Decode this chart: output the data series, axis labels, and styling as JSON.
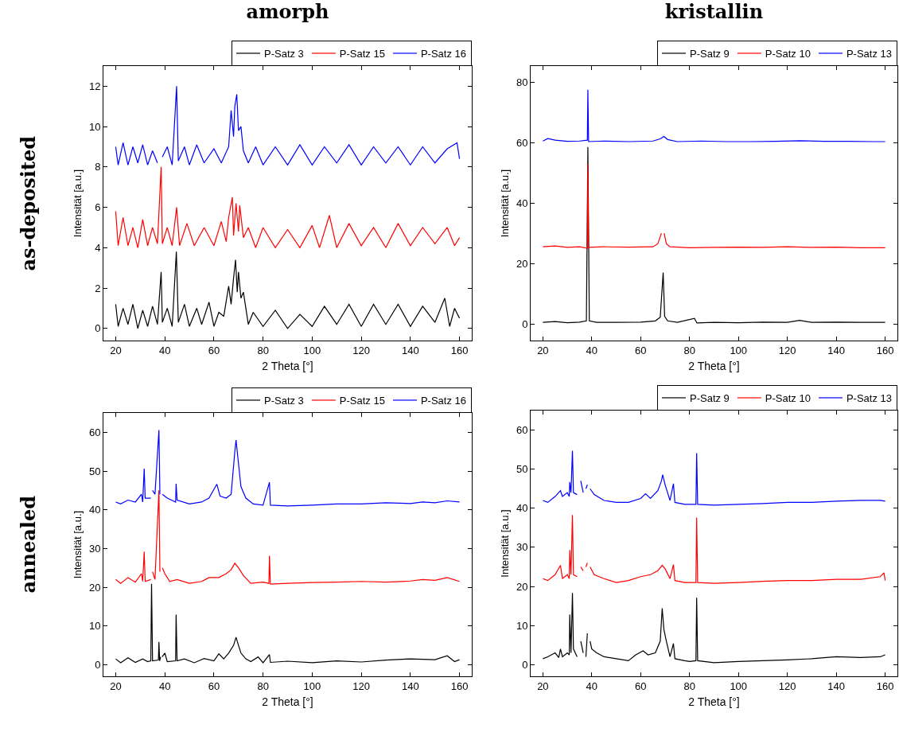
{
  "chart_data": [
    {
      "type": "line",
      "title": "amorph",
      "ylabel": "Intensität [a.u.]",
      "xlabel": "2 Theta [°]",
      "annotations": [
        "as-deposited"
      ],
      "xlim": [
        15,
        165
      ],
      "xticks": [
        20,
        40,
        60,
        80,
        100,
        120,
        140,
        160
      ],
      "ylim": [
        -0.6,
        13
      ],
      "yticks": [
        0,
        2,
        4,
        6,
        8,
        10,
        12
      ],
      "grid": false,
      "legend": "top right",
      "series": [
        {
          "name": "P-Satz 3",
          "color": "#000000",
          "x": [
            20,
            21,
            23,
            25,
            27,
            29,
            31,
            33,
            35,
            37,
            38.5,
            39,
            41,
            43,
            44.7,
            45.5,
            48,
            50,
            53,
            55,
            58,
            60,
            62,
            64,
            66,
            67,
            68,
            68.8,
            69.5,
            70,
            71,
            72,
            74,
            76,
            80,
            85,
            90,
            95,
            100,
            105,
            110,
            115,
            120,
            125,
            130,
            135,
            140,
            145,
            150,
            154,
            156,
            158,
            160
          ],
          "values": [
            1.2,
            0.1,
            1.0,
            0.2,
            1.2,
            0.0,
            0.9,
            0.1,
            1.1,
            0.2,
            2.8,
            0.3,
            1.0,
            0.1,
            3.8,
            0.3,
            1.2,
            0.1,
            1.0,
            0.2,
            1.3,
            0.1,
            0.8,
            0.6,
            2.1,
            1.2,
            2.5,
            3.4,
            1.8,
            2.8,
            1.5,
            1.8,
            0.2,
            0.8,
            0.1,
            0.9,
            0.0,
            0.7,
            0.1,
            1.1,
            0.2,
            1.2,
            0.1,
            1.2,
            0.2,
            1.2,
            0.1,
            1.1,
            0.3,
            1.5,
            0.1,
            1.0,
            0.5
          ]
        },
        {
          "name": "P-Satz 15",
          "color": "#ff0000",
          "x": [
            20,
            21,
            23,
            25,
            27,
            29,
            31,
            33,
            35,
            37,
            38.5,
            39,
            41,
            43,
            44.8,
            46,
            49,
            52,
            56,
            60,
            63,
            65,
            66,
            67.5,
            68,
            69,
            70,
            70.5,
            72,
            74,
            77,
            80,
            85,
            90,
            95,
            100,
            103,
            107,
            110,
            115,
            120,
            125,
            130,
            135,
            140,
            145,
            150,
            155,
            158,
            160
          ],
          "values": [
            5.8,
            4.1,
            5.5,
            4.1,
            5.0,
            4.0,
            5.4,
            4.1,
            5.0,
            4.2,
            8.0,
            4.2,
            5.0,
            4.1,
            6.0,
            4.1,
            5.2,
            4.1,
            5.0,
            4.1,
            5.3,
            4.3,
            5.5,
            6.5,
            4.6,
            6.2,
            4.8,
            6.1,
            4.5,
            5.0,
            4.0,
            5.0,
            4.0,
            4.9,
            4.0,
            5.1,
            4.0,
            5.6,
            4.0,
            5.2,
            4.1,
            5.0,
            4.0,
            5.2,
            4.1,
            5.0,
            4.2,
            5.0,
            4.1,
            4.5
          ]
        },
        {
          "name": "P-Satz 16",
          "color": "#0000ff",
          "x": [
            20,
            21,
            23,
            25,
            27,
            29,
            31,
            33,
            35,
            37,
            38.3,
            39,
            41,
            43,
            44.8,
            45.5,
            48,
            50,
            53,
            56,
            60,
            63,
            66,
            67,
            68,
            68.5,
            69.3,
            70,
            71,
            72,
            74,
            77,
            80,
            85,
            90,
            95,
            100,
            105,
            110,
            115,
            120,
            125,
            130,
            135,
            140,
            145,
            150,
            155,
            159,
            160
          ],
          "values": [
            9.0,
            8.1,
            9.2,
            8.1,
            9.0,
            8.2,
            9.1,
            8.1,
            8.8,
            8.2,
            null,
            8.5,
            9.0,
            8.1,
            12.0,
            8.3,
            9.0,
            8.1,
            9.1,
            8.2,
            8.9,
            8.2,
            9.0,
            10.8,
            9.5,
            11.0,
            11.6,
            9.8,
            10.0,
            8.8,
            8.2,
            9.0,
            8.1,
            9.0,
            8.1,
            9.1,
            8.1,
            9.0,
            8.2,
            9.1,
            8.1,
            9.0,
            8.2,
            9.0,
            8.1,
            9.0,
            8.2,
            8.9,
            9.2,
            8.4
          ]
        }
      ]
    },
    {
      "type": "line",
      "title": "kristallin",
      "ylabel": "Intensität [a.u.]",
      "xlabel": "2 Theta [°]",
      "xlim": [
        15,
        165
      ],
      "xticks": [
        20,
        40,
        60,
        80,
        100,
        120,
        140,
        160
      ],
      "ylim": [
        -5.5,
        85.3
      ],
      "yticks": [
        0,
        20,
        40,
        60,
        80
      ],
      "grid": false,
      "legend": "top right",
      "series": [
        {
          "name": "P-Satz 9",
          "color": "#000000",
          "x": [
            20,
            25,
            30,
            35,
            37.8,
            38.4,
            39,
            42,
            50,
            60,
            66,
            68,
            69.2,
            69.8,
            71,
            75,
            82,
            83,
            90,
            100,
            110,
            120,
            125,
            130,
            140,
            150,
            160
          ],
          "values": [
            0.5,
            0.8,
            0.4,
            0.6,
            1.0,
            58.5,
            1.0,
            0.5,
            0.5,
            0.6,
            1.0,
            2.2,
            17.0,
            2.5,
            1.0,
            0.5,
            1.8,
            0.3,
            0.5,
            0.4,
            0.6,
            0.5,
            1.2,
            0.5,
            0.6,
            0.5,
            0.5
          ]
        },
        {
          "name": "P-Satz 10",
          "color": "#ff0000",
          "x": [
            20,
            25,
            30,
            35,
            38.2,
            38.4,
            38.7,
            45,
            55,
            65,
            67,
            68.5,
            69.1,
            69.6,
            70.5,
            72,
            80,
            90,
            100,
            110,
            120,
            130,
            140,
            150,
            160
          ],
          "values": [
            25.5,
            25.8,
            25.3,
            25.5,
            25.0,
            53.0,
            25.3,
            25.5,
            25.4,
            25.5,
            26.5,
            30,
            null,
            30,
            26.5,
            25.5,
            25.2,
            25.3,
            25.4,
            25.3,
            25.5,
            25.3,
            25.4,
            25.2,
            25.2
          ]
        },
        {
          "name": "P-Satz 13",
          "color": "#0000ff",
          "x": [
            20,
            22,
            25,
            30,
            35,
            38.2,
            38.4,
            38.7,
            45,
            55,
            65,
            68,
            69.5,
            71,
            75,
            85,
            95,
            105,
            115,
            125,
            135,
            145,
            155,
            160
          ],
          "values": [
            60.5,
            61.3,
            60.8,
            60.4,
            60.5,
            60.8,
            77.5,
            60.3,
            60.5,
            60.3,
            60.5,
            61.2,
            62.0,
            61.0,
            60.3,
            60.5,
            60.3,
            60.3,
            60.4,
            60.6,
            60.4,
            60.4,
            60.3,
            60.3
          ]
        }
      ]
    },
    {
      "type": "line",
      "ylabel": "Intensität [a.u.]",
      "xlabel": "2 Theta [°]",
      "annotations": [
        "annealed"
      ],
      "xlim": [
        15,
        165
      ],
      "xticks": [
        20,
        40,
        60,
        80,
        100,
        120,
        140,
        160
      ],
      "ylim": [
        -3,
        65
      ],
      "yticks": [
        0,
        10,
        20,
        30,
        40,
        50,
        60
      ],
      "grid": false,
      "legend": "top right",
      "series": [
        {
          "name": "P-Satz 3",
          "color": "#000000",
          "x": [
            20,
            22,
            25,
            28,
            31,
            33,
            34.3,
            34.6,
            35,
            37.4,
            37.6,
            37.9,
            38.3,
            38.6,
            38.9,
            40,
            41,
            44.4,
            44.6,
            45,
            48,
            52,
            56,
            60,
            62,
            64,
            66,
            68,
            69,
            70,
            71,
            73,
            75,
            78,
            80,
            82.6,
            83,
            90,
            100,
            110,
            120,
            130,
            140,
            150,
            155,
            158,
            160
          ],
          "values": [
            1.5,
            0.5,
            1.8,
            0.6,
            1.5,
            0.8,
            1.0,
            20.9,
            1.0,
            1.2,
            5.9,
            1.0,
            2.0,
            null,
            2.0,
            3.0,
            0.8,
            1.0,
            12.9,
            1.0,
            1.5,
            0.5,
            1.6,
            1.0,
            2.8,
            1.5,
            3.0,
            5.0,
            7.1,
            5.0,
            3.0,
            1.5,
            0.8,
            2.0,
            0.5,
            2.6,
            0.6,
            0.9,
            0.5,
            1.0,
            0.7,
            1.2,
            1.5,
            1.3,
            2.3,
            0.8,
            1.3
          ]
        },
        {
          "name": "P-Satz 15",
          "color": "#ff0000",
          "x": [
            20,
            22,
            25,
            28,
            30.5,
            31,
            31.6,
            32,
            34.3,
            34.6,
            35,
            36,
            37.6,
            38,
            38.6,
            39,
            40,
            42,
            45,
            50,
            55,
            58,
            62,
            65,
            67,
            68.5,
            70,
            72,
            75,
            80,
            82.4,
            82.6,
            83,
            90,
            100,
            110,
            120,
            130,
            140,
            145,
            150,
            155,
            160
          ],
          "values": [
            22.0,
            21.0,
            22.5,
            21.3,
            23.5,
            21.5,
            29.2,
            21.5,
            22,
            null,
            24,
            22,
            45,
            24,
            null,
            25,
            23.5,
            21.5,
            22,
            21,
            21.5,
            22.5,
            22.5,
            23.5,
            24.5,
            26.2,
            25,
            23,
            21.0,
            21.3,
            21.0,
            28.1,
            20.8,
            21.0,
            21.2,
            21.3,
            21.5,
            21.3,
            21.6,
            22.0,
            21.8,
            22.5,
            21.5
          ]
        },
        {
          "name": "P-Satz 16",
          "color": "#0000ff",
          "x": [
            20,
            22,
            25,
            28,
            30.5,
            31,
            31.6,
            32,
            34.3,
            34.6,
            35,
            36,
            37.6,
            38,
            38.6,
            39,
            41,
            44.4,
            44.6,
            45,
            50,
            55,
            58,
            61.2,
            62.5,
            65,
            67,
            68.5,
            69,
            70,
            71,
            73,
            76,
            80,
            82.6,
            83,
            90,
            100,
            110,
            120,
            130,
            140,
            145,
            150,
            155,
            160
          ],
          "values": [
            42,
            41.5,
            42.5,
            42,
            44,
            42,
            50.6,
            43,
            43,
            null,
            45,
            44,
            60.6,
            44,
            null,
            44,
            43,
            42,
            46.7,
            42.5,
            41.5,
            42,
            43,
            46.6,
            43.5,
            43,
            44,
            55,
            58,
            52,
            46,
            43,
            41.5,
            41.2,
            47.1,
            41.2,
            41.0,
            41.2,
            41.5,
            41.5,
            41.8,
            41.6,
            42.0,
            41.8,
            42.3,
            42.0
          ]
        }
      ]
    },
    {
      "type": "line",
      "ylabel": "Intensität [a.u.]",
      "xlabel": "2 Theta [°]",
      "xlim": [
        15,
        165
      ],
      "xticks": [
        20,
        40,
        60,
        80,
        100,
        120,
        140,
        160
      ],
      "ylim": [
        -3,
        65
      ],
      "yticks": [
        0,
        10,
        20,
        30,
        40,
        50,
        60
      ],
      "grid": false,
      "legend": "top right",
      "series": [
        {
          "name": "P-Satz 9",
          "color": "#000000",
          "x": [
            20,
            22,
            25,
            26.5,
            27.2,
            28,
            30,
            30.8,
            31,
            31.5,
            32.1,
            32.5,
            34,
            35,
            35.5,
            36.5,
            37.2,
            37.6,
            38.2,
            38.8,
            39.3,
            40,
            42,
            45,
            50,
            55,
            58,
            61,
            63,
            66,
            68,
            68.8,
            69.5,
            70.5,
            72,
            73.4,
            74,
            78,
            80,
            82.6,
            82.9,
            83.3,
            90,
            100,
            110,
            120,
            130,
            140,
            150,
            158,
            160
          ],
          "values": [
            1.5,
            2.0,
            3.0,
            1.8,
            4.0,
            2.0,
            3.0,
            2.5,
            12.8,
            3,
            18.3,
            4,
            2,
            null,
            6,
            3,
            null,
            2,
            8,
            null,
            6,
            4,
            3,
            2,
            1.5,
            1.0,
            2.5,
            3.5,
            2.5,
            3,
            6,
            14.4,
            9,
            6,
            2,
            5.4,
            1.5,
            1.0,
            0.8,
            1,
            17.1,
            1,
            0.5,
            0.8,
            1.0,
            1.2,
            1.5,
            2.0,
            1.8,
            2.0,
            2.5
          ]
        },
        {
          "name": "P-Satz 10",
          "color": "#ff0000",
          "x": [
            20,
            22,
            25,
            27.2,
            28,
            30,
            30.8,
            31,
            31.5,
            32.1,
            32.5,
            34,
            35,
            35.5,
            36.5,
            37.2,
            37.6,
            38.2,
            38.8,
            39.3,
            41,
            45,
            50,
            55,
            60,
            64,
            67,
            68.8,
            70,
            72,
            73.4,
            74,
            78,
            82.6,
            82.9,
            83.3,
            90,
            100,
            110,
            120,
            130,
            140,
            150,
            158,
            159.5,
            160
          ],
          "values": [
            22,
            21.5,
            23,
            25.4,
            22,
            23,
            22,
            29.3,
            23,
            38.3,
            23,
            22.5,
            null,
            25,
            24,
            null,
            25,
            26,
            null,
            25,
            23,
            22,
            21,
            21.5,
            22.5,
            23,
            24,
            25.4,
            24.5,
            22,
            25.6,
            21.5,
            21,
            21,
            37.6,
            21,
            20.8,
            21,
            21.3,
            21.5,
            21.5,
            21.8,
            21.8,
            22.5,
            23.5,
            21.5
          ]
        },
        {
          "name": "P-Satz 13",
          "color": "#0000ff",
          "x": [
            20,
            22,
            25,
            27.2,
            28,
            30,
            30.8,
            31,
            31.5,
            32.1,
            32.5,
            34,
            35,
            35.5,
            36.5,
            37.2,
            37.6,
            38.2,
            38.8,
            39.3,
            41,
            45,
            50,
            55,
            60,
            62,
            64,
            67,
            68.5,
            69,
            70,
            72,
            73.4,
            74,
            78,
            82.6,
            82.9,
            83.3,
            90,
            100,
            110,
            120,
            130,
            140,
            150,
            158,
            160
          ],
          "values": [
            42,
            41.5,
            43,
            44.5,
            43,
            44,
            43,
            46.7,
            44,
            54.7,
            44,
            43.5,
            null,
            47,
            44,
            null,
            45,
            46,
            null,
            45,
            43.5,
            42,
            41.5,
            41.5,
            42.5,
            43.7,
            42.5,
            44.5,
            47,
            48.6,
            46,
            42,
            46.3,
            41.5,
            41,
            41,
            54.1,
            41,
            40.8,
            41,
            41.2,
            41.5,
            41.5,
            41.8,
            42,
            42,
            41.8
          ]
        }
      ]
    }
  ]
}
